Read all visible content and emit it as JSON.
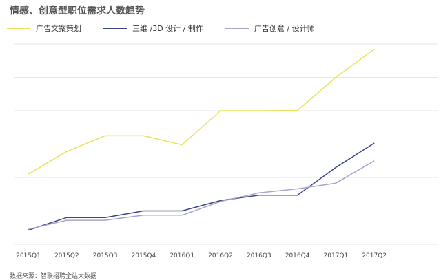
{
  "chart_data": {
    "type": "line",
    "title": "情感、创意型职位需求人数趋势",
    "categories": [
      "2015Q1",
      "2015Q2",
      "2015Q3",
      "2015Q4",
      "2016Q1",
      "2016Q2",
      "2016Q3",
      "2016Q4",
      "2017Q1",
      "2017Q2"
    ],
    "ylim": [
      0,
      6
    ],
    "grid": true,
    "legend_position": "top-left",
    "series": [
      {
        "name": "广告文案策划",
        "color": "#e8e25a",
        "values": [
          2.1,
          2.78,
          3.25,
          3.25,
          2.98,
          4.0,
          4.0,
          4.01,
          5.0,
          5.85
        ]
      },
      {
        "name": "三维 /3D 设计 / 制作",
        "color": "#3b4485",
        "values": [
          0.42,
          0.8,
          0.8,
          1.0,
          1.0,
          1.31,
          1.47,
          1.47,
          2.3,
          3.03
        ]
      },
      {
        "name": "广告创意 / 设计师",
        "color": "#a9a3c9",
        "values": [
          0.45,
          0.72,
          0.72,
          0.87,
          0.87,
          1.28,
          1.54,
          1.66,
          1.83,
          2.5
        ]
      }
    ],
    "source": "数据来源：智联招聘全站大数据"
  }
}
